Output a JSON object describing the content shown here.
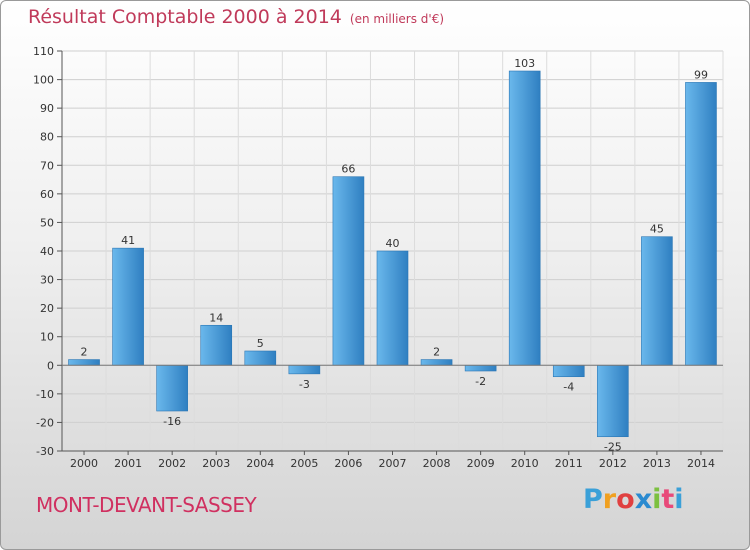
{
  "header": {
    "title": "Résultat Comptable 2000 à 2014",
    "unit": "(en milliers d'€)"
  },
  "footer": {
    "commune": "MONT-DEVANT-SASSEY",
    "brand_letters": [
      "P",
      "r",
      "o",
      "x",
      "i",
      "t",
      "i"
    ],
    "brand_colors": [
      "#3aa0d8",
      "#f0a020",
      "#e04040",
      "#2a8ad0",
      "#7cc040",
      "#e84a7a",
      "#3aa0d8"
    ]
  },
  "colors": {
    "bar_light": "#6ab8ec",
    "bar_dark": "#2f7fc1",
    "title": "#c03a5a",
    "commune": "#d03060"
  },
  "chart_data": {
    "type": "bar",
    "categories": [
      "2000",
      "2001",
      "2002",
      "2003",
      "2004",
      "2005",
      "2006",
      "2007",
      "2008",
      "2009",
      "2010",
      "2011",
      "2012",
      "2013",
      "2014"
    ],
    "values": [
      2,
      41,
      -16,
      14,
      5,
      -3,
      66,
      40,
      2,
      -2,
      103,
      -4,
      -25,
      45,
      99
    ],
    "ylim": [
      -30,
      110
    ],
    "yticks": [
      -30,
      -20,
      -10,
      0,
      10,
      20,
      30,
      40,
      50,
      60,
      70,
      80,
      90,
      100,
      110
    ],
    "grid": true
  }
}
